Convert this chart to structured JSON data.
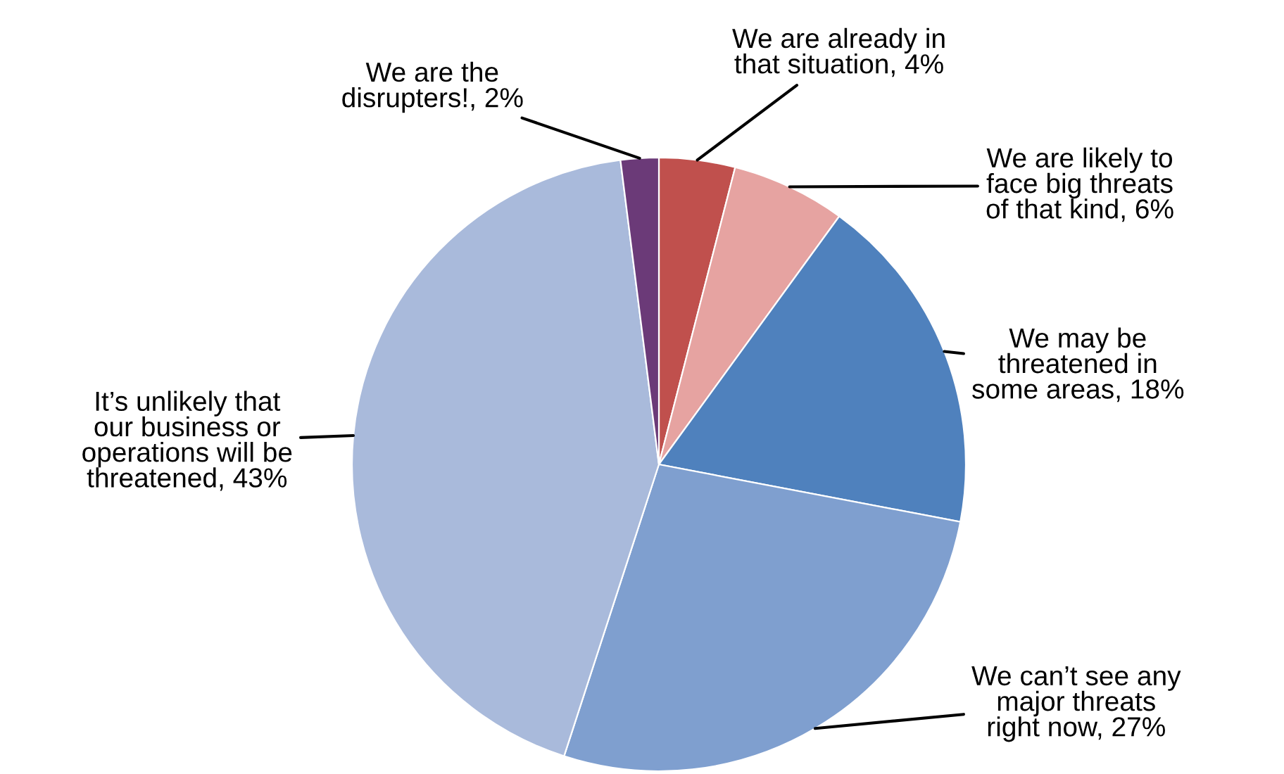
{
  "chart_data": {
    "type": "pie",
    "categories": [
      "We are already in\nthat situation, 4%",
      "We are likely to\nface big threats\nof that kind, 6%",
      "We may be\nthreatened in\nsome areas, 18%",
      "We can’t see any\nmajor threats\nright now, 27%",
      "It’s unlikely that\nour business or\noperations will be\nthreatened, 43%",
      "We are the\ndisrupters!, 2%"
    ],
    "values": [
      4,
      6,
      18,
      27,
      43,
      2
    ],
    "colors": [
      "#c0504d",
      "#e6a3a1",
      "#4f81bd",
      "#7f9fcf",
      "#a9badb",
      "#6b3a78"
    ],
    "legend": false
  }
}
